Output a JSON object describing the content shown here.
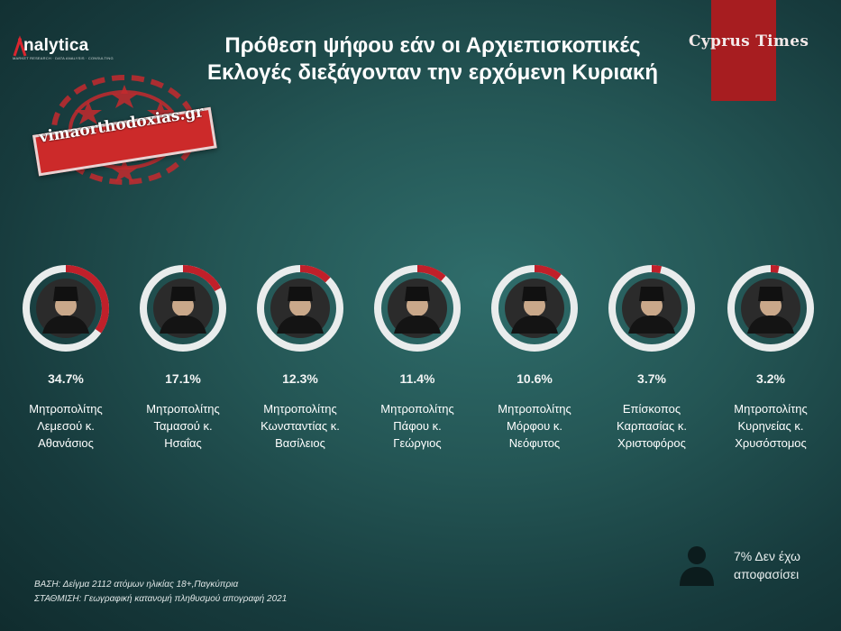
{
  "header": {
    "title_line1": "Πρόθεση ψήφου εάν οι Αρχιεπισκοπικές",
    "title_line2": "Εκλογές διεξάγονταν την ερχόμενη Κυριακή",
    "logo_text": "nalytica",
    "logo_subtext": "MARKET RESEARCH · DATA ANALYSIS · CONSULTING",
    "brand": "Cyprus Times"
  },
  "watermark": {
    "text": "vimaorthodoxias.gr"
  },
  "chart_data": {
    "type": "pie",
    "title": "Πρόθεση ψήφου εάν οι Αρχιεπισκοπικές Εκλογές διεξάγονταν την ερχόμενη Κυριακή",
    "categories": [
      "Μητροπολίτης Λεμεσού κ. Αθανάσιος",
      "Μητροπολίτης Ταμασού κ. Ησαΐας",
      "Μητροπολίτης Κωνσταντίας κ. Βασίλειος",
      "Μητροπολίτης Πάφου κ. Γεώργιος",
      "Μητροπολίτης Μόρφου κ. Νεόφυτος",
      "Επίσκοπος Καρπασίας κ. Χριστοφόρος",
      "Μητροπολίτης Κυρηνείας κ. Χρυσόστομος"
    ],
    "values": [
      34.7,
      17.1,
      12.3,
      11.4,
      10.6,
      3.7,
      3.2
    ],
    "unit": "%"
  },
  "candidates": [
    {
      "pct": "34.7%",
      "name": "Μητροπολίτης\nΛεμεσού κ.\nΑθανάσιος"
    },
    {
      "pct": "17.1%",
      "name": "Μητροπολίτης\nΤαμασού κ.\nΗσαΐας"
    },
    {
      "pct": "12.3%",
      "name": "Μητροπολίτης\nΚωνσταντίας κ.\nΒασίλειος"
    },
    {
      "pct": "11.4%",
      "name": "Μητροπολίτης\nΠάφου κ.\nΓεώργιος"
    },
    {
      "pct": "10.6%",
      "name": "Μητροπολίτης\nΜόρφου κ.\nΝεόφυτος"
    },
    {
      "pct": "3.7%",
      "name": "Επίσκοπος\nΚαρπασίας κ.\nΧριστοφόρος"
    },
    {
      "pct": "3.2%",
      "name": "Μητροπολίτης\nΚυρηνείας κ.\nΧρυσόστομος"
    }
  ],
  "undecided": {
    "line1": "7% Δεν έχω",
    "line2": "αποφασίσει",
    "icon": "person-silhouette-icon"
  },
  "footer": {
    "base": "ΒΑΣΗ: Δείγμα 2112 ατόμων ηλικίας 18+,Παγκύπρια",
    "weighting": "ΣΤΑΘΜΙΣΗ: Γεωγραφική κατανομή πληθυσμού απογραφή 2021"
  },
  "colors": {
    "accent": "#c0202a",
    "ring_track": "#e9ecec",
    "brand_band": "#a71d20"
  }
}
